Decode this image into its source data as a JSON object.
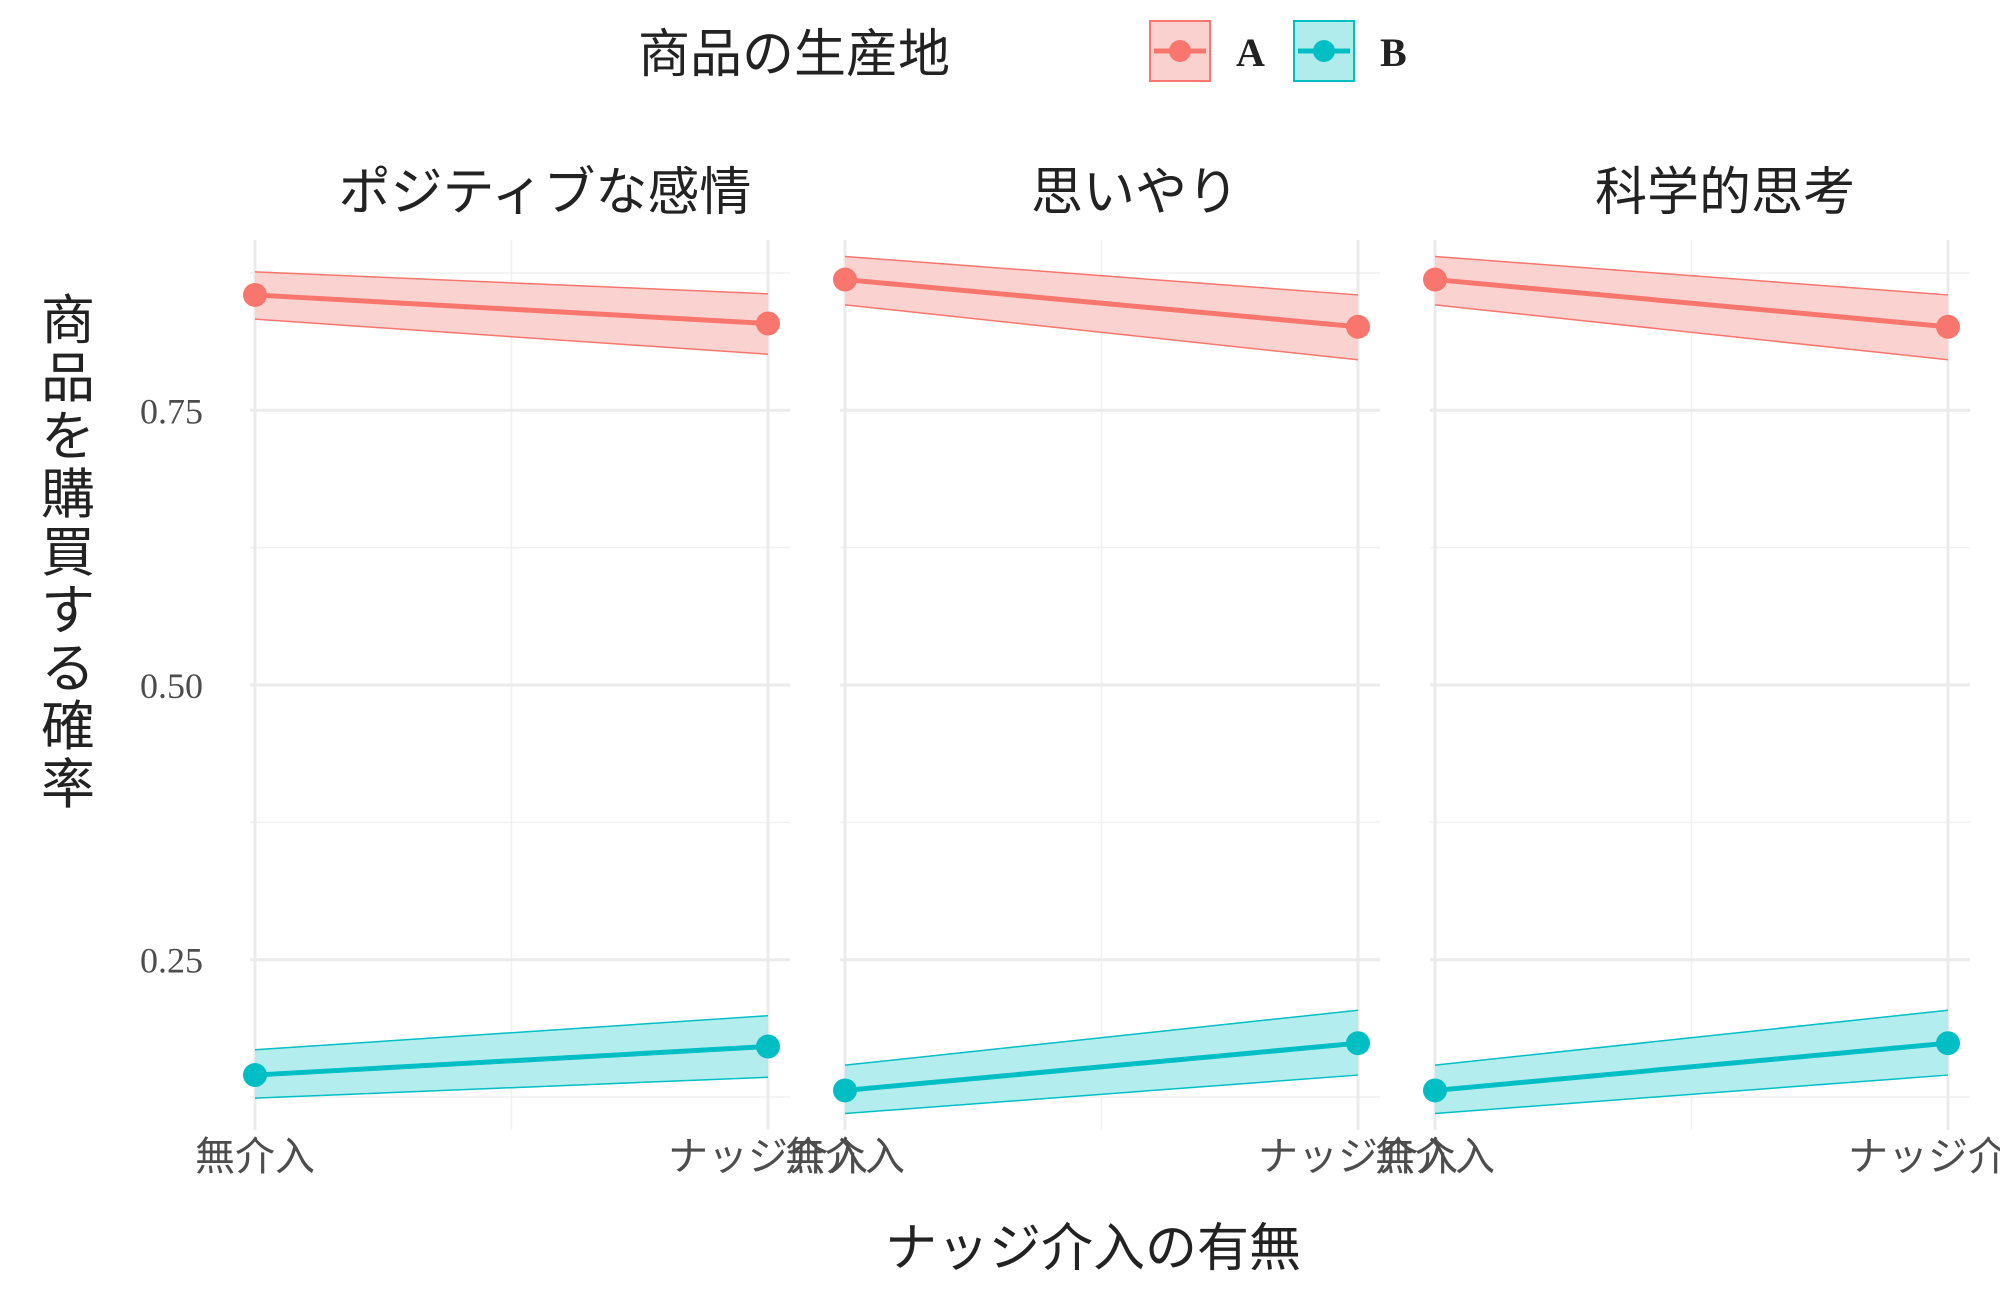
{
  "legend": {
    "title": "商品の生産地",
    "position": "top",
    "items": [
      {
        "label": "A",
        "color": "#F8766D",
        "fill": "#FAD1CF"
      },
      {
        "label": "B",
        "color": "#00BFC4",
        "fill": "#B0ECEC"
      }
    ]
  },
  "axes": {
    "xlabel": "ナッジ介入の有無",
    "ylabel": "商品を購買する確率",
    "x_ticks": [
      "無介入",
      "ナッジ介入"
    ],
    "y_ticks": [
      "0.25",
      "0.50",
      "0.75"
    ]
  },
  "chart_data": {
    "type": "line",
    "facet_titles": [
      "ポジティブな感情",
      "思いやり",
      "科学的思考"
    ],
    "categories": [
      "無介入",
      "ナッジ介入"
    ],
    "y_ticks": [
      0.25,
      0.5,
      0.75
    ],
    "ylim": [
      0.095,
      0.905
    ],
    "grid": true,
    "legend_position": "top",
    "panels": [
      {
        "title": "ポジティブな感情",
        "series": [
          {
            "name": "A",
            "values": [
              0.855,
              0.829
            ],
            "lower": [
              0.833,
              0.801
            ],
            "upper": [
              0.876,
              0.856
            ]
          },
          {
            "name": "B",
            "values": [
              0.145,
              0.171
            ],
            "lower": [
              0.124,
              0.143
            ],
            "upper": [
              0.168,
              0.199
            ]
          }
        ]
      },
      {
        "title": "思いやり",
        "series": [
          {
            "name": "A",
            "values": [
              0.869,
              0.826
            ],
            "lower": [
              0.846,
              0.796
            ],
            "upper": [
              0.89,
              0.855
            ]
          },
          {
            "name": "B",
            "values": [
              0.131,
              0.174
            ],
            "lower": [
              0.11,
              0.145
            ],
            "upper": [
              0.154,
              0.204
            ]
          }
        ]
      },
      {
        "title": "科学的思考",
        "series": [
          {
            "name": "A",
            "values": [
              0.869,
              0.826
            ],
            "lower": [
              0.846,
              0.796
            ],
            "upper": [
              0.89,
              0.855
            ]
          },
          {
            "name": "B",
            "values": [
              0.131,
              0.174
            ],
            "lower": [
              0.11,
              0.145
            ],
            "upper": [
              0.154,
              0.204
            ]
          }
        ]
      }
    ]
  }
}
